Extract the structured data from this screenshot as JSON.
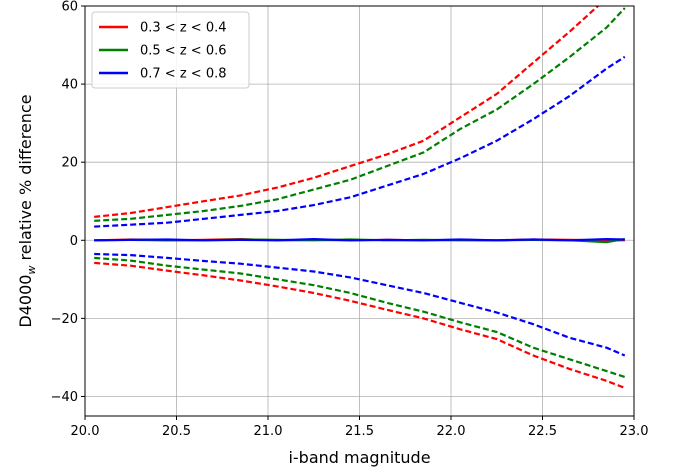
{
  "chart_data": {
    "type": "line",
    "xlabel": "i-band magnitude",
    "ylabel": "D4000_w relative % difference",
    "ylabel_main": "D4000",
    "ylabel_sub": "w",
    "ylabel_rest": " relative % difference",
    "xlim": [
      20.0,
      23.0
    ],
    "ylim": [
      -45,
      60
    ],
    "xticks": [
      20.0,
      20.5,
      21.0,
      21.5,
      22.0,
      22.5,
      23.0
    ],
    "xtick_labels": [
      "20.0",
      "20.5",
      "21.0",
      "21.5",
      "22.0",
      "22.5",
      "23.0"
    ],
    "yticks": [
      -40,
      -20,
      0,
      20,
      40,
      60
    ],
    "ytick_labels": [
      "−40",
      "−20",
      "0",
      "20",
      "40",
      "60"
    ],
    "grid": true,
    "legend_position": "top-left",
    "x": [
      20.05,
      20.25,
      20.45,
      20.65,
      20.85,
      21.05,
      21.25,
      21.45,
      21.65,
      21.85,
      22.05,
      22.25,
      22.45,
      22.65,
      22.85,
      22.95
    ],
    "series": [
      {
        "name": "0.3 < z < 0.4",
        "color": "#ff0000",
        "median": [
          0.0,
          0.2,
          0.0,
          0.1,
          0.3,
          0.0,
          0.1,
          0.0,
          0.1,
          0.0,
          0.1,
          0.0,
          0.2,
          0.1,
          0.0,
          0.0
        ],
        "upper": [
          6.0,
          7.0,
          8.5,
          10.0,
          11.5,
          13.5,
          16.0,
          19.0,
          22.0,
          25.5,
          31.5,
          37.5,
          45.5,
          53.5,
          62.0,
          66.0
        ],
        "lower": [
          -5.8,
          -6.5,
          -7.8,
          -9.0,
          -10.3,
          -11.8,
          -13.5,
          -15.5,
          -17.8,
          -20.0,
          -22.8,
          -25.3,
          -29.5,
          -33.0,
          -36.0,
          -37.8
        ]
      },
      {
        "name": "0.5 < z < 0.6",
        "color": "#008000",
        "median": [
          0.0,
          0.1,
          0.0,
          0.0,
          0.2,
          0.1,
          0.0,
          0.2,
          0.0,
          0.1,
          0.0,
          0.0,
          0.1,
          0.0,
          -0.5,
          0.3
        ],
        "upper": [
          5.0,
          5.5,
          6.5,
          7.5,
          8.8,
          10.5,
          13.0,
          15.5,
          19.0,
          22.5,
          28.5,
          33.5,
          40.0,
          47.0,
          54.5,
          59.5
        ],
        "lower": [
          -4.5,
          -5.2,
          -6.5,
          -7.5,
          -8.5,
          -10.0,
          -11.5,
          -13.5,
          -16.0,
          -18.3,
          -21.0,
          -23.5,
          -27.5,
          -30.5,
          -33.5,
          -35.0
        ]
      },
      {
        "name": "0.7 < z < 0.8",
        "color": "#0000ff",
        "median": [
          0.0,
          0.1,
          0.2,
          0.0,
          0.1,
          0.0,
          0.3,
          0.0,
          0.1,
          0.0,
          0.2,
          0.0,
          0.2,
          0.0,
          0.3,
          0.2
        ],
        "upper": [
          3.5,
          4.0,
          4.5,
          5.5,
          6.5,
          7.5,
          9.0,
          11.0,
          14.0,
          17.0,
          21.0,
          25.5,
          31.0,
          37.0,
          44.0,
          47.0
        ],
        "lower": [
          -3.5,
          -3.8,
          -4.5,
          -5.3,
          -6.0,
          -7.0,
          -8.0,
          -9.5,
          -11.5,
          -13.5,
          -16.0,
          -18.5,
          -21.5,
          -25.0,
          -27.5,
          -29.5
        ]
      }
    ]
  }
}
